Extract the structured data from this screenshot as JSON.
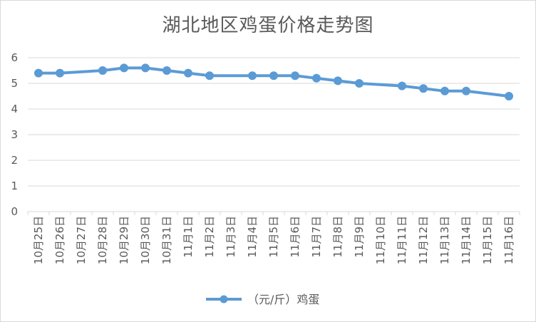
{
  "chart_data": {
    "type": "line",
    "title": "湖北地区鸡蛋价格走势图",
    "xlabel": "",
    "ylabel": "",
    "ylim": [
      0,
      6
    ],
    "yticks": [
      0,
      1,
      2,
      3,
      4,
      5,
      6
    ],
    "grid": true,
    "legend_position": "bottom",
    "color": "#5b9bd5",
    "categories": [
      "10月25日",
      "10月26日",
      "10月27日",
      "10月28日",
      "10月29日",
      "10月30日",
      "10月31日",
      "11月1日",
      "11月2日",
      "11月3日",
      "11月4日",
      "11月5日",
      "11月6日",
      "11月7日",
      "11月8日",
      "11月9日",
      "11月10日",
      "11月11日",
      "11月12日",
      "11月13日",
      "11月14日",
      "11月15日",
      "11月16日"
    ],
    "series": [
      {
        "name": "（元/斤）鸡蛋",
        "values": [
          5.4,
          5.4,
          null,
          5.5,
          5.6,
          5.6,
          5.5,
          5.4,
          5.3,
          null,
          5.3,
          5.3,
          5.3,
          5.2,
          5.1,
          5.0,
          null,
          4.9,
          4.8,
          4.7,
          4.7,
          null,
          4.5
        ]
      }
    ]
  }
}
